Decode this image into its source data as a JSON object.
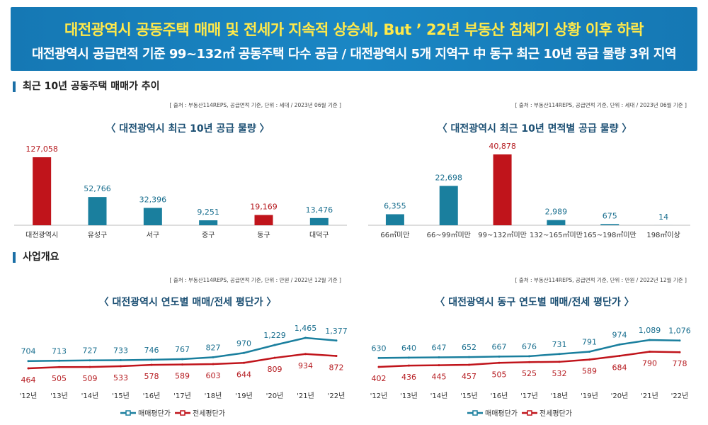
{
  "banner": {
    "title": "대전광역시 공동주택 매매 및 전세가 지속적 상승세, But ’ 22년 부동산 침체기 상황 이후 하락",
    "subtitle": "대전광역시 공급면적 기준 99~132㎡ 공동주택 다수 공급 / 대전광역시 5개 지역구 中 동구 최근 10년 공급 물량 3위 지역"
  },
  "sections": {
    "supply": "최근 10년 공동주택 매매가 추이",
    "overview": "사업개요"
  },
  "colors": {
    "teal": "#1a7f9e",
    "red": "#c0141b",
    "label_teal": "#1a6f8f",
    "label_red": "#b51a1f"
  },
  "chart_data": [
    {
      "type": "bar",
      "title": "〈 대전광역시 최근 10년 공급 물량 〉",
      "source": "[ 출처 : 부동산114REPS, 공급면적 기준, 단위 : 세대 / 2023년 06월 기준 ]",
      "categories": [
        "대전광역시",
        "유성구",
        "서구",
        "중구",
        "동구",
        "대덕구"
      ],
      "values": [
        127058,
        52766,
        32396,
        9251,
        19169,
        13476
      ],
      "value_labels": [
        "127,058",
        "52,766",
        "32,396",
        "9,251",
        "19,169",
        "13,476"
      ],
      "highlight": [
        0,
        4
      ],
      "ylim": [
        0,
        127058
      ]
    },
    {
      "type": "bar",
      "title": "〈 대전광역시 최근 10년 면적별 공급 물량 〉",
      "source": "[ 출처 : 부동산114REPS, 공급면적 기준,  단위 : 세대 / 2023년 06월 기준 ]",
      "categories": [
        "66㎡미만",
        "66~99㎡미만",
        "99~132㎡미만",
        "132~165㎡미만",
        "165~198㎡미만",
        "198㎡이상"
      ],
      "values": [
        6355,
        22698,
        40878,
        2989,
        675,
        14
      ],
      "value_labels": [
        "6,355",
        "22,698",
        "40,878",
        "2,989",
        "675",
        "14"
      ],
      "highlight": [
        2
      ],
      "ylim": [
        0,
        40878
      ]
    },
    {
      "type": "line",
      "title": "〈 대전광역시 연도별 매매/전세 평단가 〉",
      "source": "[ 출처 : 부동산114REPS, 공급면적 기준, 단위 : 만원 / 2022년 12월 기준 ]",
      "categories": [
        "'12년",
        "'13년",
        "'14년",
        "'15년",
        "'16년",
        "'17년",
        "'18년",
        "'19년",
        "'20년",
        "'21년",
        "'22년"
      ],
      "series": [
        {
          "name": "매매평단가",
          "values": [
            704,
            713,
            727,
            733,
            746,
            767,
            827,
            970,
            1229,
            1465,
            1377
          ],
          "value_labels": [
            "704",
            "713",
            "727",
            "733",
            "746",
            "767",
            "827",
            "970",
            "1,229",
            "1,465",
            "1,377"
          ]
        },
        {
          "name": "전세평단가",
          "values": [
            464,
            505,
            509,
            533,
            578,
            589,
            603,
            644,
            809,
            934,
            872
          ],
          "value_labels": [
            "464",
            "505",
            "509",
            "533",
            "578",
            "589",
            "603",
            "644",
            "809",
            "934",
            "872"
          ]
        }
      ],
      "ylim": [
        0,
        1465
      ]
    },
    {
      "type": "line",
      "title": "〈 대전광역시 동구 연도별 매매/전세 평단가 〉",
      "source": "[ 출처 : 부동산114REPS, 공급면적 기준, 단위 : 만원 / 2022년 12월 기준 ]",
      "categories": [
        "'12년",
        "'13년",
        "'14년",
        "'15년",
        "'16년",
        "'17년",
        "'18년",
        "'19년",
        "'20년",
        "'21년",
        "'22년"
      ],
      "series": [
        {
          "name": "매매평단가",
          "values": [
            630,
            640,
            647,
            652,
            667,
            676,
            731,
            791,
            974,
            1089,
            1076
          ],
          "value_labels": [
            "630",
            "640",
            "647",
            "652",
            "667",
            "676",
            "731",
            "791",
            "974",
            "1,089",
            "1,076"
          ]
        },
        {
          "name": "전세평단가",
          "values": [
            402,
            436,
            445,
            457,
            505,
            525,
            532,
            589,
            684,
            790,
            778
          ],
          "value_labels": [
            "402",
            "436",
            "445",
            "457",
            "505",
            "525",
            "532",
            "589",
            "684",
            "790",
            "778"
          ]
        }
      ],
      "ylim": [
        0,
        1089
      ]
    }
  ]
}
